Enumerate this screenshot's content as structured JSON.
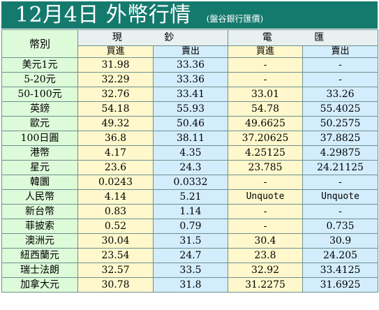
{
  "header": {
    "title": "12月4日 外幣行情",
    "source": "(盤谷銀行匯價)"
  },
  "table": {
    "currency_label": "幣別",
    "cash_label": "現 鈔",
    "transfer_label": "電 匯",
    "buy_label": "買進",
    "sell_label": "賣出",
    "rows": [
      {
        "name": "美元1元",
        "cash_buy": "31.98",
        "cash_sell": "33.36",
        "tt_buy": "-",
        "tt_sell": "-"
      },
      {
        "name": "5-20元",
        "cash_buy": "32.29",
        "cash_sell": "33.36",
        "tt_buy": "-",
        "tt_sell": "-"
      },
      {
        "name": "50-100元",
        "cash_buy": "32.76",
        "cash_sell": "33.41",
        "tt_buy": "33.01",
        "tt_sell": "33.26"
      },
      {
        "name": "英鎊",
        "cash_buy": "54.18",
        "cash_sell": "55.93",
        "tt_buy": "54.78",
        "tt_sell": "55.4025"
      },
      {
        "name": "歐元",
        "cash_buy": "49.32",
        "cash_sell": "50.46",
        "tt_buy": "49.6625",
        "tt_sell": "50.2575"
      },
      {
        "name": "100日圓",
        "cash_buy": "36.8",
        "cash_sell": "38.11",
        "tt_buy": "37.20625",
        "tt_sell": "37.8825"
      },
      {
        "name": "港幣",
        "cash_buy": "4.17",
        "cash_sell": "4.35",
        "tt_buy": "4.25125",
        "tt_sell": "4.29875"
      },
      {
        "name": "星元",
        "cash_buy": "23.6",
        "cash_sell": "24.3",
        "tt_buy": "23.785",
        "tt_sell": "24.21125"
      },
      {
        "name": "韓圜",
        "cash_buy": "0.0243",
        "cash_sell": "0.0332",
        "tt_buy": "-",
        "tt_sell": "-"
      },
      {
        "name": "人民幣",
        "cash_buy": "4.14",
        "cash_sell": "5.21",
        "tt_buy": "Unquote",
        "tt_sell": "Unquote"
      },
      {
        "name": "新台幣",
        "cash_buy": "0.83",
        "cash_sell": "1.14",
        "tt_buy": "-",
        "tt_sell": "-"
      },
      {
        "name": "菲披索",
        "cash_buy": "0.52",
        "cash_sell": "0.79",
        "tt_buy": "-",
        "tt_sell": "0.735"
      },
      {
        "name": "澳洲元",
        "cash_buy": "30.04",
        "cash_sell": "31.5",
        "tt_buy": "30.4",
        "tt_sell": "30.9"
      },
      {
        "name": "紐西蘭元",
        "cash_buy": "23.54",
        "cash_sell": "24.7",
        "tt_buy": "23.8",
        "tt_sell": "24.205"
      },
      {
        "name": "瑞士法朗",
        "cash_buy": "32.57",
        "cash_sell": "33.5",
        "tt_buy": "32.92",
        "tt_sell": "33.4125"
      },
      {
        "name": "加拿大元",
        "cash_buy": "30.78",
        "cash_sell": "31.8",
        "tt_buy": "31.2275",
        "tt_sell": "31.6925"
      }
    ]
  }
}
